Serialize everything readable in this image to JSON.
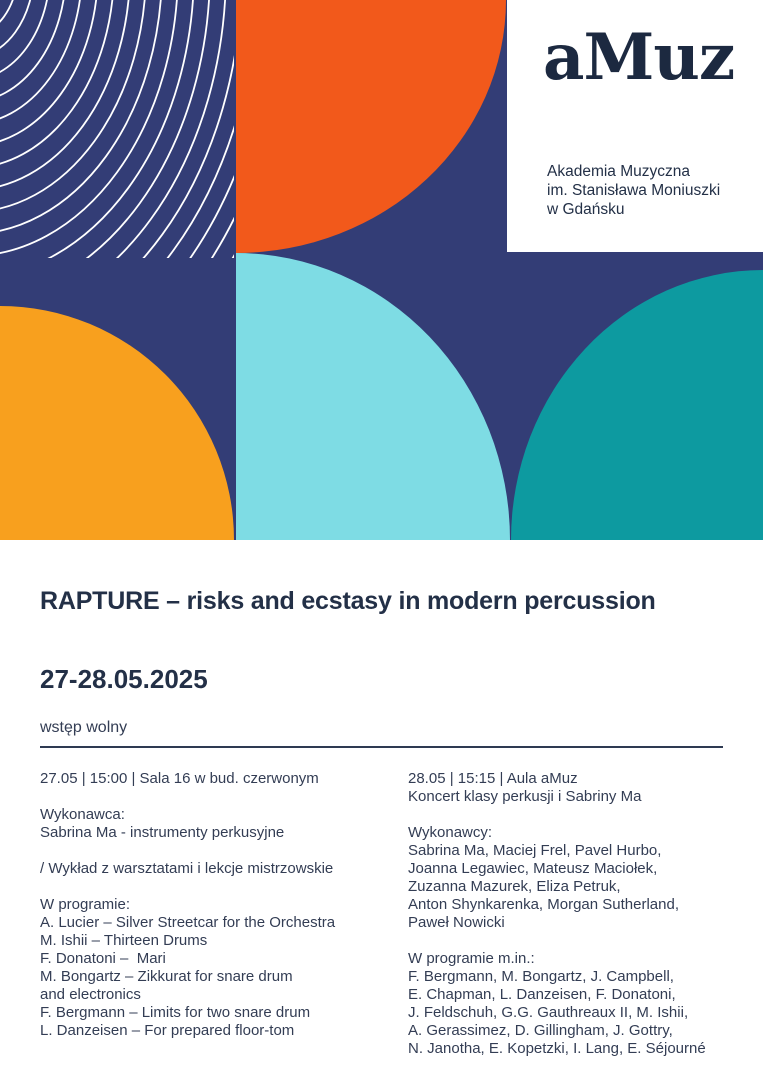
{
  "colors": {
    "navy": "#333D76",
    "orange": "#F2591B",
    "amber": "#F8A01E",
    "cyan": "#7EDCE4",
    "teal": "#0D9AA0",
    "logo_navy": "#1C2940",
    "heading_text": "#233047",
    "body_text": "#333D54",
    "rule": "#2E3A52",
    "background": "#FFFFFF",
    "arc_stroke": "#FFFFFF"
  },
  "branding": {
    "logo_text": "aMuz",
    "institution_lines": [
      "Akademia Muzyczna",
      "im. Stanisława Moniuszki",
      "w Gdańsku"
    ]
  },
  "event": {
    "title": "RAPTURE – risks and ecstasy in modern percussion",
    "date_range": "27-28.05.2025",
    "admission": "wstęp wolny"
  },
  "sessions": [
    {
      "name": "session-27-05",
      "paragraphs": [
        {
          "lines": [
            "27.05 | 15:00 | Sala 16 w bud. czerwonym"
          ]
        },
        {
          "lines": [
            "Wykonawca:",
            "Sabrina Ma - instrumenty perkusyjne"
          ]
        },
        {
          "lines": [
            "/ Wykład z warsztatami i lekcje mistrzowskie"
          ]
        },
        {
          "lines": [
            "W programie:",
            "A. Lucier – Silver Streetcar for the Orchestra",
            "M. Ishii – Thirteen Drums",
            "F. Donatoni –  Mari",
            "M. Bongartz – Zikkurat for snare drum",
            "and electronics",
            "F. Bergmann – Limits for two snare drum",
            "L. Danzeisen – For prepared floor-tom"
          ]
        }
      ]
    },
    {
      "name": "session-28-05",
      "paragraphs": [
        {
          "lines": [
            "28.05 | 15:15 | Aula aMuz",
            "Koncert klasy perkusji i Sabriny Ma"
          ]
        },
        {
          "lines": [
            "Wykonawcy:",
            "Sabrina Ma, Maciej Frel, Pavel Hurbo,",
            "Joanna Legawiec, Mateusz Maciołek,",
            "Zuzanna Mazurek, Eliza Petruk,",
            "Anton Shynkarenka, Morgan Sutherland,",
            "Paweł Nowicki"
          ]
        },
        {
          "lines": [
            "W programie m.in.:",
            "F. Bergmann, M. Bongartz, J. Campbell,",
            "E. Chapman, L. Danzeisen, F. Donatoni,",
            "J. Feldschuh, G.G. Gauthreaux II, M. Ishii,",
            "A. Gerassimez, D. Gillingham, J. Gottry,",
            "N. Janotha, E. Kopetzki, I. Lang, E. Séjourné"
          ]
        }
      ]
    }
  ]
}
